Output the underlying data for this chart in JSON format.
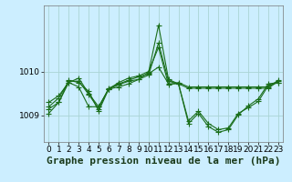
{
  "background_color": "#cceeff",
  "grid_color": "#aad4d4",
  "line_color": "#1a6e1a",
  "xlabel": "Graphe pression niveau de la mer (hPa)",
  "xlim": [
    -0.5,
    23.5
  ],
  "ylim": [
    1008.4,
    1011.5
  ],
  "yticks": [
    1009,
    1010
  ],
  "xticks": [
    0,
    1,
    2,
    3,
    4,
    5,
    6,
    7,
    8,
    9,
    10,
    11,
    12,
    13,
    14,
    15,
    16,
    17,
    18,
    19,
    20,
    21,
    22,
    23
  ],
  "series": [
    [
      1009.3,
      1009.45,
      1009.75,
      1009.85,
      1009.5,
      1009.2,
      1009.6,
      1009.75,
      1009.85,
      1009.9,
      1010.0,
      1010.55,
      1009.7,
      1009.75,
      1009.65,
      1009.65,
      1009.65,
      1009.65,
      1009.65,
      1009.65,
      1009.65,
      1009.65,
      1009.65,
      1009.8
    ],
    [
      1009.15,
      1009.3,
      1009.8,
      1009.75,
      1009.55,
      1009.1,
      1009.6,
      1009.7,
      1009.78,
      1009.82,
      1009.92,
      1010.65,
      1009.78,
      1009.72,
      1008.88,
      1009.1,
      1008.82,
      1008.68,
      1008.72,
      1009.05,
      1009.18,
      1009.32,
      1009.68,
      1009.75
    ],
    [
      1009.05,
      1009.3,
      1009.75,
      1009.65,
      1009.2,
      1009.2,
      1009.6,
      1009.65,
      1009.72,
      1009.82,
      1009.98,
      1011.05,
      1009.82,
      1009.72,
      1008.82,
      1009.05,
      1008.75,
      1008.62,
      1008.68,
      1009.02,
      1009.22,
      1009.38,
      1009.72,
      1009.75
    ],
    [
      1009.2,
      1009.4,
      1009.78,
      1009.78,
      1009.48,
      1009.15,
      1009.62,
      1009.72,
      1009.8,
      1009.88,
      1009.95,
      1010.1,
      1009.72,
      1009.72,
      1009.62,
      1009.62,
      1009.62,
      1009.62,
      1009.62,
      1009.62,
      1009.62,
      1009.62,
      1009.62,
      1009.78
    ]
  ],
  "marker_size": 4,
  "line_width": 0.8,
  "xlabel_fontsize": 8,
  "tick_fontsize": 6.5
}
